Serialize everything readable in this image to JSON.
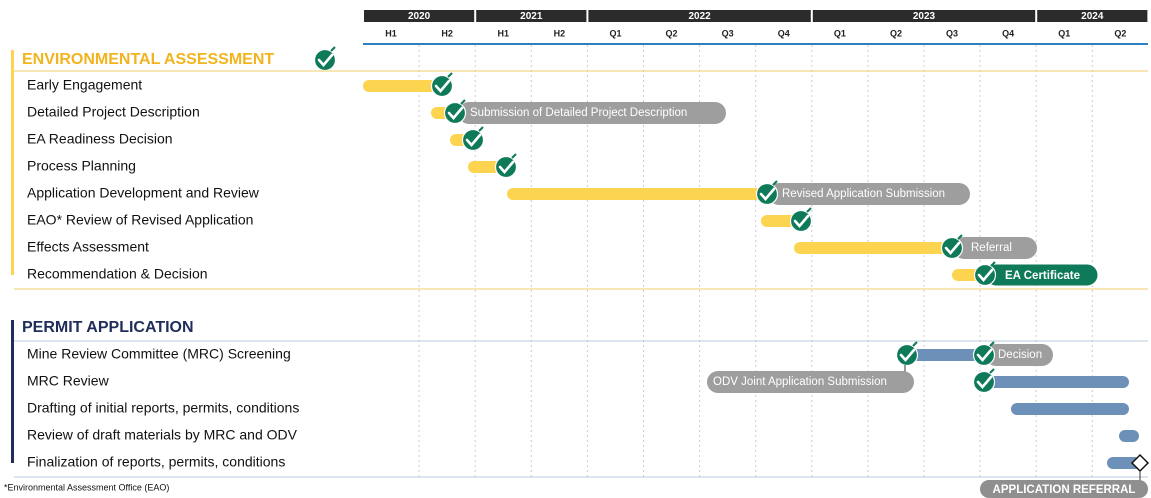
{
  "timeline": {
    "years": [
      "2020",
      "2021",
      "2022",
      "2023",
      "2024"
    ],
    "periods": [
      "H1",
      "H2",
      "H1",
      "H2",
      "Q1",
      "Q2",
      "Q3",
      "Q4",
      "Q1",
      "Q2",
      "Q3",
      "Q4",
      "Q1",
      "Q2"
    ]
  },
  "sections": [
    {
      "title": "ENVIRONMENTAL ASSESSMENT",
      "tasks": [
        "Early Engagement",
        "Detailed Project Description",
        "EA Readiness Decision",
        "Process Planning",
        "Application Development and Review",
        "EAO* Review of Revised Application",
        "Effects Assessment",
        "Recommendation & Decision"
      ]
    },
    {
      "title": "PERMIT APPLICATION",
      "tasks": [
        "Mine Review Committee (MRC) Screening",
        "MRC Review",
        "Drafting of initial reports, permits, conditions",
        "Review of draft materials by MRC and ODV",
        "Finalization of reports, permits, conditions"
      ]
    }
  ],
  "milestones": [
    "Submission of Detailed Project Description",
    "Revised Application Submission",
    "Referral",
    "EA Certificate",
    "Decision",
    "ODV Joint Application Submission",
    "APPLICATION REFERRAL"
  ],
  "footnote": "*Environmental Assessment Office (EAO)"
}
